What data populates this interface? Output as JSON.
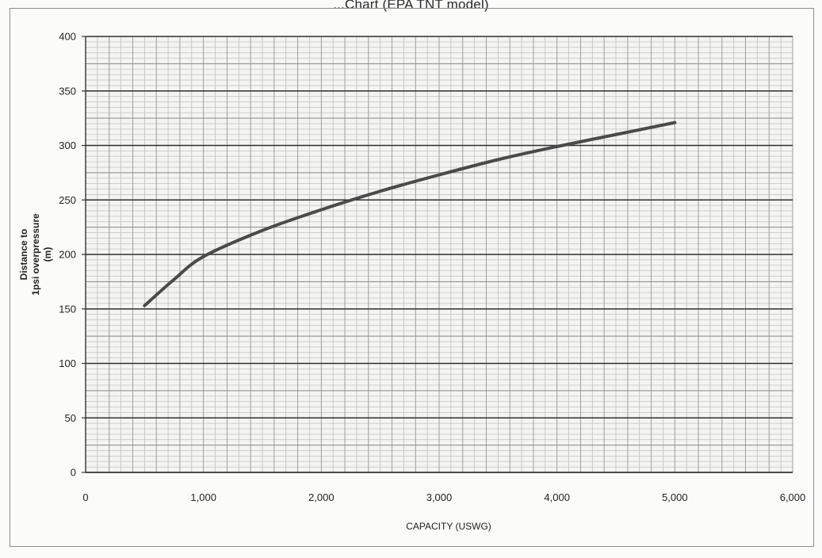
{
  "chart_data": {
    "type": "line",
    "title": "...Chart (EPA TNT model)",
    "xlabel": "CAPACITY (USWG)",
    "ylabel_lines": [
      "Distance to",
      "1psi overpressure",
      "(m)"
    ],
    "xlim": [
      0,
      6000
    ],
    "ylim": [
      0,
      400
    ],
    "x_ticks": [
      0,
      1000,
      2000,
      3000,
      4000,
      5000,
      6000
    ],
    "x_tick_labels": [
      "0",
      "1,000",
      "2,000",
      "3,000",
      "4,000",
      "5,000",
      "6,000"
    ],
    "y_ticks": [
      0,
      50,
      100,
      150,
      200,
      250,
      300,
      350,
      400
    ],
    "y_tick_labels": [
      "0",
      "50",
      "100",
      "150",
      "200",
      "250",
      "300",
      "350",
      "400"
    ],
    "grid": true,
    "legend": "none",
    "series": [
      {
        "color": "#4a4a4a",
        "x": [
          500,
          750,
          1000,
          1500,
          2000,
          2500,
          3000,
          3500,
          4000,
          4500,
          5000
        ],
        "y": [
          153,
          177,
          198,
          222,
          241,
          258,
          273,
          287,
          299,
          310,
          321
        ]
      }
    ]
  }
}
